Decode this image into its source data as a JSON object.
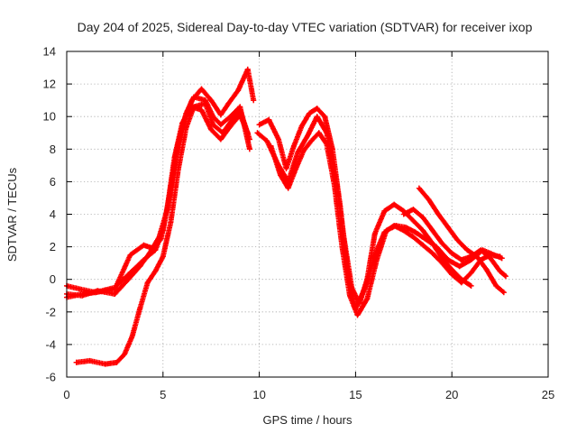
{
  "chart_data": {
    "type": "scatter",
    "title": "Day 204 of 2025, Sidereal Day-to-day VTEC variation (SDTVAR) for receiver ixop",
    "xlabel": "GPS time / hours",
    "ylabel": "SDTVAR / TECUs",
    "xlim": [
      0,
      25
    ],
    "ylim": [
      -6,
      14
    ],
    "xticks": [
      "0",
      "5",
      "10",
      "15",
      "20",
      "25"
    ],
    "yticks": [
      "-6",
      "-4",
      "-2",
      "0",
      "2",
      "4",
      "6",
      "8",
      "10",
      "12",
      "14"
    ],
    "grid": true,
    "marker": "+",
    "series_color": "#ff0000",
    "series": [
      {
        "name": "track-1",
        "x": [
          0.0,
          0.8,
          1.5,
          2.5,
          3.2,
          4.0,
          4.6,
          5.0,
          5.4,
          5.8,
          6.2,
          6.6,
          7.2,
          7.6,
          8.0,
          8.5,
          9.0,
          9.5
        ],
        "y": [
          -1.1,
          -0.9,
          -0.8,
          -0.5,
          0.3,
          1.2,
          1.8,
          3.0,
          5.6,
          8.4,
          10.2,
          11.2,
          11.0,
          10.0,
          9.5,
          10.0,
          10.6,
          8.0
        ]
      },
      {
        "name": "track-2",
        "x": [
          0.0,
          0.7,
          1.5,
          2.5,
          3.3,
          4.0,
          4.5,
          4.9,
          5.3,
          5.7,
          6.1,
          6.5,
          7.0,
          7.5,
          8.0,
          8.4,
          8.9,
          9.4,
          9.7
        ],
        "y": [
          -0.4,
          -0.6,
          -0.8,
          -0.6,
          1.5,
          2.1,
          1.9,
          2.5,
          4.8,
          7.8,
          9.8,
          11.0,
          11.7,
          11.0,
          10.1,
          10.8,
          11.6,
          12.9,
          11.0
        ]
      },
      {
        "name": "track-3",
        "x": [
          0.0,
          0.8,
          1.6,
          2.5,
          3.2,
          3.8,
          4.3,
          4.8,
          5.2,
          5.6,
          6.0,
          6.5,
          7.0,
          7.5,
          8.0,
          8.5,
          9.0,
          9.4
        ],
        "y": [
          -0.9,
          -1.0,
          -0.7,
          -0.9,
          0.0,
          0.8,
          1.6,
          2.6,
          4.2,
          7.5,
          9.6,
          10.6,
          10.4,
          9.2,
          8.6,
          9.4,
          10.1,
          9.0
        ]
      },
      {
        "name": "track-4",
        "x": [
          0.5,
          1.2,
          2.0,
          2.6,
          3.0,
          3.4,
          3.8,
          4.2,
          4.6,
          5.0,
          5.4,
          5.8,
          6.2,
          6.6,
          7.2,
          7.6,
          8.1,
          8.6,
          9.0,
          9.5
        ],
        "y": [
          -5.1,
          -5.0,
          -5.2,
          -5.1,
          -4.6,
          -3.5,
          -1.8,
          -0.2,
          0.5,
          1.4,
          3.5,
          6.8,
          9.3,
          10.6,
          10.8,
          9.5,
          9.0,
          9.8,
          10.4,
          8.6
        ]
      },
      {
        "name": "track-5",
        "x": [
          10.0,
          10.5,
          11.0,
          11.4,
          11.8,
          12.2,
          12.6,
          13.0,
          13.4,
          13.8,
          14.2,
          14.6,
          15.0,
          15.5,
          16.0,
          16.5,
          17.0,
          17.5,
          18.0,
          18.5,
          19.0,
          19.5,
          20.0,
          20.5,
          21.0,
          21.5,
          22.0,
          22.5
        ],
        "y": [
          9.5,
          9.8,
          8.6,
          6.8,
          8.2,
          9.4,
          10.2,
          10.5,
          10.0,
          8.0,
          4.5,
          0.3,
          -1.8,
          -0.5,
          1.5,
          2.9,
          3.3,
          3.0,
          2.6,
          2.1,
          1.6,
          1.0,
          0.3,
          -0.2,
          0.4,
          1.2,
          1.5,
          1.4
        ]
      },
      {
        "name": "track-6",
        "x": [
          9.9,
          10.4,
          11.0,
          11.5,
          12.0,
          12.5,
          13.0,
          13.5,
          14.0,
          14.4,
          14.8,
          15.2,
          15.6,
          16.0,
          16.5,
          17.0,
          17.5,
          18.0,
          18.5,
          19.0,
          19.5,
          20.0,
          20.5,
          21.0
        ],
        "y": [
          9.0,
          8.5,
          7.0,
          6.0,
          7.8,
          8.8,
          10.0,
          9.0,
          6.0,
          2.5,
          -0.5,
          -1.5,
          0.0,
          2.8,
          4.2,
          4.6,
          4.2,
          3.6,
          3.0,
          2.2,
          1.3,
          0.6,
          0.0,
          -0.4
        ]
      },
      {
        "name": "track-7",
        "x": [
          10.6,
          11.1,
          11.5,
          11.9,
          12.3,
          12.7,
          13.1,
          13.5,
          13.9,
          14.3,
          14.7,
          15.1,
          15.6,
          16.1,
          16.6,
          17.1,
          17.6,
          18.1,
          18.6,
          19.2,
          19.8,
          20.4,
          21.0,
          21.6,
          22.0,
          22.6
        ],
        "y": [
          8.2,
          6.4,
          5.6,
          6.8,
          7.9,
          8.5,
          9.0,
          8.3,
          5.8,
          2.0,
          -1.0,
          -2.2,
          -1.2,
          1.2,
          3.0,
          3.3,
          3.2,
          2.9,
          2.5,
          2.0,
          1.2,
          0.8,
          1.2,
          1.8,
          1.6,
          1.3
        ]
      },
      {
        "name": "track-8",
        "x": [
          18.3,
          18.8,
          19.3,
          19.8,
          20.3,
          20.8,
          21.3,
          21.8,
          22.3,
          22.7
        ],
        "y": [
          5.6,
          4.9,
          4.0,
          3.2,
          2.4,
          1.8,
          1.4,
          0.6,
          -0.4,
          -0.8
        ]
      },
      {
        "name": "track-9",
        "x": [
          17.5,
          18.0,
          18.5,
          19.0,
          19.5,
          20.0,
          20.5,
          21.0,
          21.5,
          22.0,
          22.5,
          22.8
        ],
        "y": [
          4.0,
          4.3,
          3.8,
          3.0,
          2.2,
          1.6,
          1.2,
          1.4,
          1.8,
          1.3,
          0.5,
          0.2
        ]
      }
    ]
  }
}
